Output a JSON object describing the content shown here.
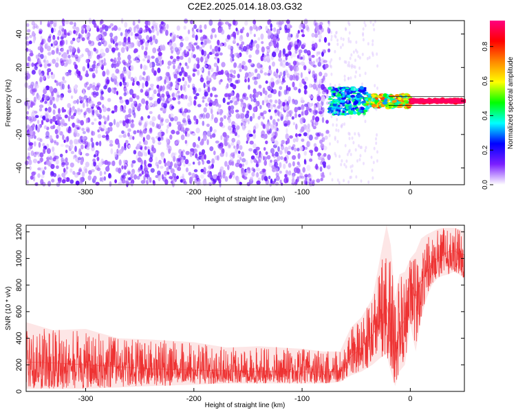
{
  "title": "C2E2.2025.014.18.03.G32",
  "colors": {
    "spectro_purple_deep": "#6a10e8",
    "spectro_purple_light": "#c9a3f6",
    "snr_line": "#ee3333",
    "plot_frame": "#000000"
  },
  "chart_data": [
    {
      "type": "heatmap",
      "xlabel": "Height of straight line (km)",
      "ylabel": "Frequency (Hz)",
      "xlim": [
        -355,
        50
      ],
      "ylim": [
        -50,
        48
      ],
      "xticks": [
        -300,
        -200,
        -100,
        0
      ],
      "yticks": [
        -40,
        -20,
        0,
        20,
        40
      ],
      "grid": false,
      "colorbar": {
        "label": "Normalized spectral amplitude",
        "range": [
          0.0,
          0.95
        ],
        "ticks": [
          "0.0",
          "0.2",
          "0.4",
          "0.6",
          "0.8"
        ],
        "colormap": [
          "#ffffff",
          "#7b1fff",
          "#0000ff",
          "#00ffff",
          "#00ff00",
          "#ffff00",
          "#ff8800",
          "#ff0000",
          "#ff0080"
        ]
      },
      "regions": [
        {
          "x_range": [
            -355,
            -75
          ],
          "freq_range": [
            -50,
            48
          ],
          "amplitude": [
            0.02,
            0.15
          ],
          "description_level": "noise"
        },
        {
          "x_range": [
            -75,
            -40
          ],
          "freq_range": [
            -8,
            8
          ],
          "amplitude": [
            0.2,
            0.45
          ]
        },
        {
          "x_range": [
            -40,
            0
          ],
          "freq_range": [
            -4,
            4
          ],
          "amplitude": [
            0.3,
            0.8
          ]
        },
        {
          "x_range": [
            0,
            50
          ],
          "freq_range": [
            -1,
            1
          ],
          "amplitude": [
            0.85,
            0.95
          ]
        }
      ]
    },
    {
      "type": "line",
      "xlabel": "Height of straight line (km)",
      "ylabel": "SNR (10 * v/v)",
      "xlim": [
        -355,
        50
      ],
      "ylim": [
        0,
        1250
      ],
      "xticks": [
        -300,
        -200,
        -100,
        0
      ],
      "yticks": [
        0,
        200,
        400,
        600,
        800,
        1000,
        1200
      ],
      "grid": false,
      "series": [
        {
          "x": [
            -355,
            -330,
            -300,
            -270,
            -240,
            -200,
            -170,
            -140,
            -100,
            -80,
            -65,
            -55,
            -45,
            -35,
            -28,
            -22,
            -18,
            -14,
            -10,
            -5,
            0,
            5,
            10,
            15,
            20,
            25,
            30,
            35,
            40,
            45,
            50
          ],
          "y": [
            220,
            215,
            200,
            185,
            170,
            160,
            155,
            150,
            145,
            145,
            150,
            260,
            330,
            420,
            520,
            650,
            500,
            200,
            450,
            550,
            850,
            700,
            830,
            900,
            960,
            1000,
            1020,
            1050,
            1060,
            1040,
            1030
          ],
          "y_min": [
            20,
            20,
            20,
            30,
            40,
            50,
            60,
            60,
            60,
            60,
            70,
            120,
            150,
            200,
            250,
            280,
            150,
            40,
            150,
            200,
            500,
            300,
            550,
            700,
            800,
            850,
            870,
            880,
            900,
            880,
            850
          ],
          "y_max": [
            520,
            460,
            470,
            400,
            390,
            370,
            330,
            340,
            320,
            300,
            300,
            480,
            560,
            700,
            1000,
            1250,
            1100,
            700,
            880,
            900,
            1000,
            1050,
            1150,
            1180,
            1200,
            1220,
            1230,
            1230,
            1230,
            1220,
            1210
          ]
        }
      ]
    }
  ]
}
